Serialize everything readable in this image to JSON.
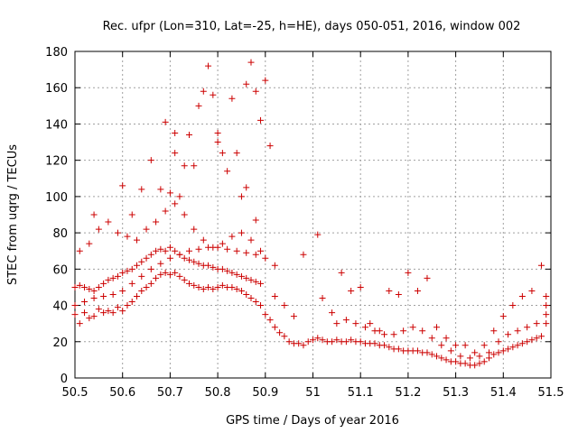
{
  "chart_data": {
    "type": "scatter",
    "title": "Rec. ufpr (Lon=310, Lat=-25, h=HE), days 050-051, 2016, window 002",
    "xlabel": "GPS time / Days of year 2016",
    "ylabel": "STEC from uqrg / TECUs",
    "xlim": [
      50.5,
      51.5
    ],
    "ylim": [
      0,
      180
    ],
    "x_ticks": [
      "50.5",
      "50.6",
      "50.7",
      "50.8",
      "50.9",
      "51",
      "51.1",
      "51.2",
      "51.3",
      "51.4",
      "51.5"
    ],
    "y_ticks": [
      "0",
      "20",
      "40",
      "60",
      "80",
      "100",
      "120",
      "140",
      "160",
      "180"
    ],
    "grid": true,
    "marker": "+",
    "color": "#cc0000",
    "points": [
      [
        50.5,
        35
      ],
      [
        50.51,
        30
      ],
      [
        50.52,
        36
      ],
      [
        50.53,
        33
      ],
      [
        50.54,
        34
      ],
      [
        50.55,
        38
      ],
      [
        50.56,
        36
      ],
      [
        50.57,
        37
      ],
      [
        50.58,
        36
      ],
      [
        50.59,
        39
      ],
      [
        50.6,
        37
      ],
      [
        50.61,
        40
      ],
      [
        50.62,
        42
      ],
      [
        50.63,
        45
      ],
      [
        50.64,
        48
      ],
      [
        50.65,
        50
      ],
      [
        50.66,
        52
      ],
      [
        50.67,
        55
      ],
      [
        50.68,
        57
      ],
      [
        50.69,
        58
      ],
      [
        50.7,
        57
      ],
      [
        50.71,
        58
      ],
      [
        50.72,
        56
      ],
      [
        50.73,
        54
      ],
      [
        50.74,
        52
      ],
      [
        50.75,
        51
      ],
      [
        50.76,
        50
      ],
      [
        50.77,
        49
      ],
      [
        50.78,
        50
      ],
      [
        50.79,
        49
      ],
      [
        50.8,
        50
      ],
      [
        50.81,
        51
      ],
      [
        50.82,
        50
      ],
      [
        50.83,
        50
      ],
      [
        50.84,
        49
      ],
      [
        50.85,
        48
      ],
      [
        50.86,
        46
      ],
      [
        50.87,
        44
      ],
      [
        50.88,
        42
      ],
      [
        50.89,
        40
      ],
      [
        50.5,
        50
      ],
      [
        50.51,
        51
      ],
      [
        50.52,
        50
      ],
      [
        50.53,
        49
      ],
      [
        50.54,
        48
      ],
      [
        50.55,
        50
      ],
      [
        50.56,
        52
      ],
      [
        50.57,
        54
      ],
      [
        50.58,
        55
      ],
      [
        50.59,
        56
      ],
      [
        50.6,
        58
      ],
      [
        50.61,
        59
      ],
      [
        50.62,
        60
      ],
      [
        50.63,
        62
      ],
      [
        50.64,
        64
      ],
      [
        50.65,
        66
      ],
      [
        50.66,
        68
      ],
      [
        50.67,
        70
      ],
      [
        50.68,
        71
      ],
      [
        50.69,
        70
      ],
      [
        50.7,
        72
      ],
      [
        50.71,
        70
      ],
      [
        50.72,
        68
      ],
      [
        50.73,
        66
      ],
      [
        50.74,
        65
      ],
      [
        50.75,
        64
      ],
      [
        50.76,
        63
      ],
      [
        50.77,
        62
      ],
      [
        50.78,
        62
      ],
      [
        50.79,
        61
      ],
      [
        50.8,
        60
      ],
      [
        50.81,
        60
      ],
      [
        50.82,
        59
      ],
      [
        50.83,
        58
      ],
      [
        50.84,
        57
      ],
      [
        50.85,
        56
      ],
      [
        50.86,
        55
      ],
      [
        50.87,
        54
      ],
      [
        50.88,
        53
      ],
      [
        50.89,
        52
      ],
      [
        50.5,
        40
      ],
      [
        50.52,
        42
      ],
      [
        50.54,
        44
      ],
      [
        50.56,
        45
      ],
      [
        50.58,
        46
      ],
      [
        50.6,
        48
      ],
      [
        50.62,
        52
      ],
      [
        50.64,
        56
      ],
      [
        50.66,
        60
      ],
      [
        50.68,
        63
      ],
      [
        50.7,
        66
      ],
      [
        50.72,
        68
      ],
      [
        50.74,
        70
      ],
      [
        50.76,
        71
      ],
      [
        50.78,
        72
      ],
      [
        50.8,
        72
      ],
      [
        50.82,
        71
      ],
      [
        50.84,
        70
      ],
      [
        50.86,
        69
      ],
      [
        50.88,
        68
      ],
      [
        50.9,
        66
      ],
      [
        50.92,
        62
      ],
      [
        50.51,
        70
      ],
      [
        50.53,
        74
      ],
      [
        50.55,
        82
      ],
      [
        50.57,
        86
      ],
      [
        50.59,
        80
      ],
      [
        50.61,
        78
      ],
      [
        50.63,
        76
      ],
      [
        50.65,
        82
      ],
      [
        50.67,
        86
      ],
      [
        50.69,
        92
      ],
      [
        50.71,
        96
      ],
      [
        50.73,
        90
      ],
      [
        50.75,
        82
      ],
      [
        50.77,
        76
      ],
      [
        50.79,
        72
      ],
      [
        50.81,
        74
      ],
      [
        50.83,
        78
      ],
      [
        50.85,
        80
      ],
      [
        50.87,
        76
      ],
      [
        50.89,
        70
      ],
      [
        50.54,
        90
      ],
      [
        50.6,
        106
      ],
      [
        50.62,
        90
      ],
      [
        50.64,
        104
      ],
      [
        50.66,
        120
      ],
      [
        50.68,
        104
      ],
      [
        50.7,
        102
      ],
      [
        50.71,
        124
      ],
      [
        50.72,
        100
      ],
      [
        50.73,
        117
      ],
      [
        50.74,
        134
      ],
      [
        50.75,
        117
      ],
      [
        50.76,
        150
      ],
      [
        50.77,
        158
      ],
      [
        50.78,
        172
      ],
      [
        50.79,
        156
      ],
      [
        50.8,
        135
      ],
      [
        50.81,
        124
      ],
      [
        50.82,
        114
      ],
      [
        50.83,
        154
      ],
      [
        50.84,
        124
      ],
      [
        50.85,
        100
      ],
      [
        50.86,
        162
      ],
      [
        50.87,
        174
      ],
      [
        50.88,
        158
      ],
      [
        50.89,
        142
      ],
      [
        50.9,
        164
      ],
      [
        50.91,
        128
      ],
      [
        50.69,
        141
      ],
      [
        50.71,
        135
      ],
      [
        50.8,
        130
      ],
      [
        50.86,
        105
      ],
      [
        50.88,
        87
      ],
      [
        50.9,
        35
      ],
      [
        50.91,
        32
      ],
      [
        50.92,
        28
      ],
      [
        50.93,
        25
      ],
      [
        50.94,
        23
      ],
      [
        50.95,
        20
      ],
      [
        50.96,
        19
      ],
      [
        50.97,
        19
      ],
      [
        50.98,
        18
      ],
      [
        50.99,
        20
      ],
      [
        51.0,
        21
      ],
      [
        51.01,
        22
      ],
      [
        51.02,
        21
      ],
      [
        51.03,
        20
      ],
      [
        51.04,
        20
      ],
      [
        51.05,
        21
      ],
      [
        51.06,
        20
      ],
      [
        51.07,
        20
      ],
      [
        51.08,
        21
      ],
      [
        51.09,
        20
      ],
      [
        51.1,
        20
      ],
      [
        51.11,
        19
      ],
      [
        51.12,
        19
      ],
      [
        51.13,
        19
      ],
      [
        51.14,
        18
      ],
      [
        51.15,
        18
      ],
      [
        51.16,
        17
      ],
      [
        51.17,
        16
      ],
      [
        51.18,
        16
      ],
      [
        51.19,
        15
      ],
      [
        51.2,
        15
      ],
      [
        51.21,
        15
      ],
      [
        51.22,
        15
      ],
      [
        51.23,
        14
      ],
      [
        51.24,
        14
      ],
      [
        51.25,
        13
      ],
      [
        51.26,
        12
      ],
      [
        51.27,
        11
      ],
      [
        51.28,
        10
      ],
      [
        51.29,
        9
      ],
      [
        51.3,
        9
      ],
      [
        51.31,
        8
      ],
      [
        51.32,
        8
      ],
      [
        51.33,
        7
      ],
      [
        51.34,
        7
      ],
      [
        51.35,
        8
      ],
      [
        51.36,
        9
      ],
      [
        51.37,
        11
      ],
      [
        51.38,
        13
      ],
      [
        51.39,
        14
      ],
      [
        51.4,
        15
      ],
      [
        51.41,
        16
      ],
      [
        51.42,
        17
      ],
      [
        51.43,
        18
      ],
      [
        51.44,
        19
      ],
      [
        51.45,
        20
      ],
      [
        51.46,
        21
      ],
      [
        51.47,
        22
      ],
      [
        51.48,
        23
      ],
      [
        50.92,
        45
      ],
      [
        50.94,
        40
      ],
      [
        50.96,
        34
      ],
      [
        50.98,
        68
      ],
      [
        51.01,
        79
      ],
      [
        51.02,
        44
      ],
      [
        51.04,
        36
      ],
      [
        51.06,
        58
      ],
      [
        51.08,
        48
      ],
      [
        51.1,
        50
      ],
      [
        51.12,
        30
      ],
      [
        51.14,
        26
      ],
      [
        51.16,
        48
      ],
      [
        51.18,
        46
      ],
      [
        51.2,
        58
      ],
      [
        51.22,
        48
      ],
      [
        51.24,
        55
      ],
      [
        51.26,
        28
      ],
      [
        51.28,
        22
      ],
      [
        51.3,
        18
      ],
      [
        51.32,
        18
      ],
      [
        51.34,
        14
      ],
      [
        51.36,
        18
      ],
      [
        51.38,
        26
      ],
      [
        51.4,
        34
      ],
      [
        51.42,
        40
      ],
      [
        51.44,
        45
      ],
      [
        51.46,
        48
      ],
      [
        51.48,
        62
      ],
      [
        51.49,
        45
      ],
      [
        51.49,
        40
      ],
      [
        51.49,
        35
      ],
      [
        51.49,
        30
      ],
      [
        51.05,
        30
      ],
      [
        51.07,
        32
      ],
      [
        51.09,
        30
      ],
      [
        51.11,
        28
      ],
      [
        51.13,
        26
      ],
      [
        51.15,
        24
      ],
      [
        51.17,
        24
      ],
      [
        51.19,
        26
      ],
      [
        51.21,
        28
      ],
      [
        51.23,
        26
      ],
      [
        51.25,
        22
      ],
      [
        51.27,
        18
      ],
      [
        51.29,
        15
      ],
      [
        51.31,
        12
      ],
      [
        51.33,
        11
      ],
      [
        51.35,
        12
      ],
      [
        51.37,
        14
      ],
      [
        51.39,
        20
      ],
      [
        51.41,
        24
      ],
      [
        51.43,
        26
      ],
      [
        51.45,
        28
      ],
      [
        51.47,
        30
      ]
    ]
  }
}
